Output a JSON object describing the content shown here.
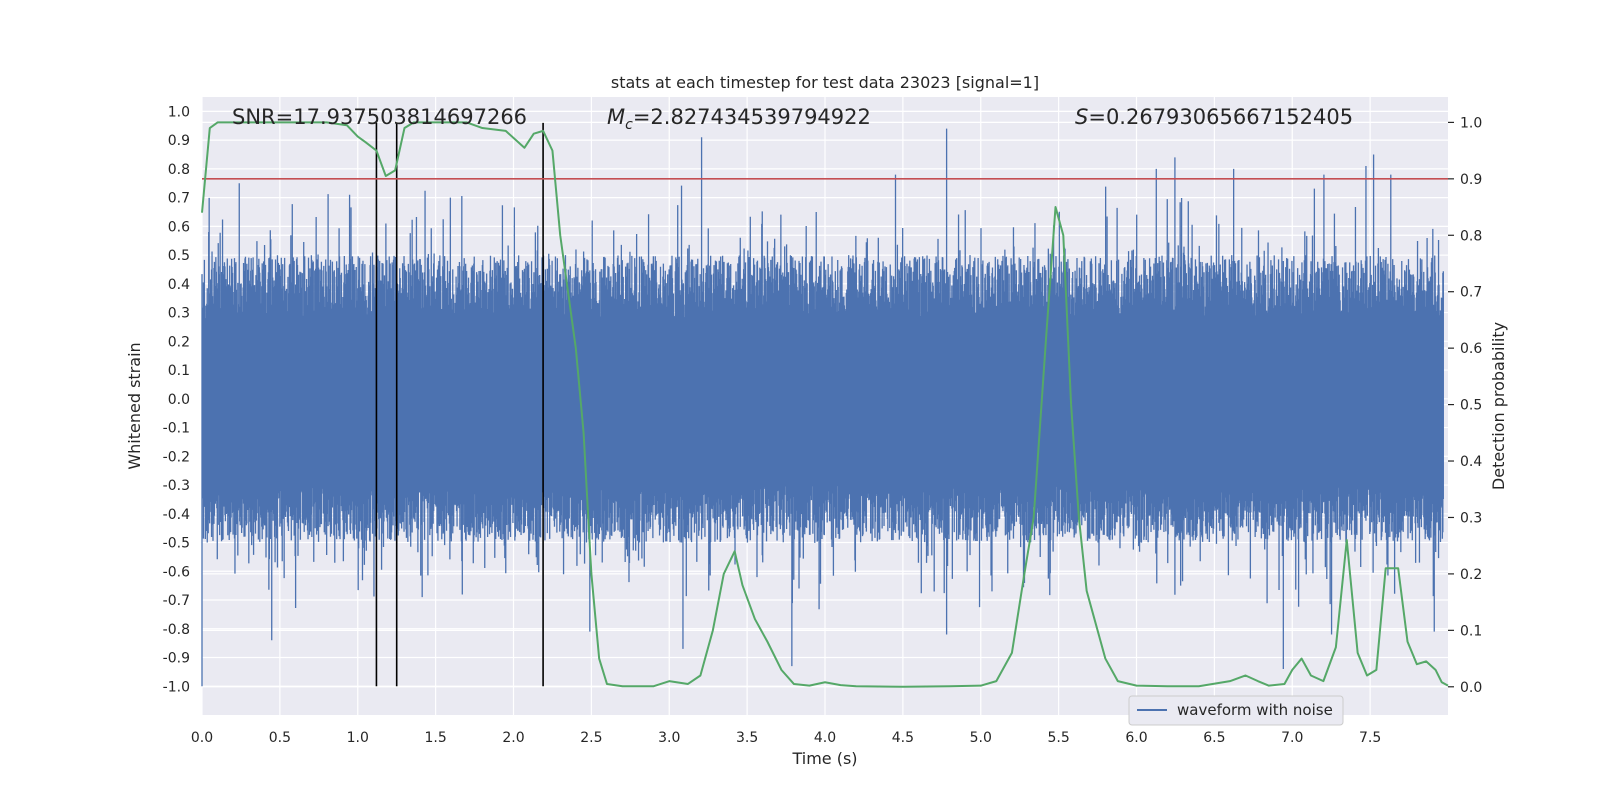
{
  "chart_data": {
    "type": "line",
    "title": "stats at each timestep for test data 23023 [signal=1]",
    "xlabel": "Time (s)",
    "ylabel_left": "Whitened strain",
    "ylabel_right": "Detection probability",
    "xlim": [
      0.0,
      8.0
    ],
    "ylim_left": [
      -1.1,
      1.05
    ],
    "ylim_right": [
      -0.05,
      1.045
    ],
    "x_ticks": [
      "0.0",
      "0.5",
      "1.0",
      "1.5",
      "2.0",
      "2.5",
      "3.0",
      "3.5",
      "4.0",
      "4.5",
      "5.0",
      "5.5",
      "6.0",
      "6.5",
      "7.0",
      "7.5"
    ],
    "y_left_ticks": [
      "1.0",
      "0.9",
      "0.8",
      "0.7",
      "0.6",
      "0.5",
      "0.4",
      "0.3",
      "0.2",
      "0.1",
      "0.0",
      "-0.1",
      "-0.2",
      "-0.3",
      "-0.4",
      "-0.5",
      "-0.6",
      "-0.7",
      "-0.8",
      "-0.9",
      "-1.0"
    ],
    "y_right_ticks": [
      "1.0",
      "0.9",
      "0.8",
      "0.7",
      "0.6",
      "0.5",
      "0.4",
      "0.3",
      "0.2",
      "0.1",
      "0.0"
    ],
    "grid": true,
    "legend": {
      "position": "lower-right",
      "entries": [
        "waveform with noise"
      ]
    },
    "annotations": {
      "snr": "SNR=17.937503814697266",
      "mc_symbol": "M",
      "mc_sub": "c",
      "mc_value": "=2.827434539794922",
      "s_symbol": "S",
      "s_value": "=0.26793065667152405"
    },
    "threshold": {
      "axis": "right",
      "value": 0.9,
      "color": "#c44e52"
    },
    "vertical_lines": [
      1.12,
      1.25,
      2.19
    ],
    "series": [
      {
        "name": "waveform with noise",
        "axis": "left",
        "color": "#4c72b0",
        "description": "noisy whitened strain, roughly -0.5..0.55 with spikes to ~0.9 and down to -1.0",
        "spikes_up": [
          [
            0.24,
            0.75
          ],
          [
            0.95,
            0.71
          ],
          [
            1.6,
            0.7
          ],
          [
            3.22,
            0.91
          ],
          [
            4.47,
            0.78
          ],
          [
            4.8,
            0.94
          ],
          [
            6.15,
            0.8
          ],
          [
            6.27,
            0.84
          ],
          [
            6.65,
            0.8
          ],
          [
            7.23,
            0.78
          ],
          [
            7.5,
            0.81
          ],
          [
            7.55,
            0.85
          ],
          [
            7.66,
            0.78
          ]
        ],
        "spikes_down": [
          [
            0.0,
            -1.0
          ],
          [
            0.45,
            -0.84
          ],
          [
            2.5,
            -0.81
          ],
          [
            3.1,
            -0.87
          ],
          [
            3.8,
            -0.93
          ],
          [
            4.8,
            -0.82
          ],
          [
            6.97,
            -0.94
          ],
          [
            7.28,
            -0.82
          ],
          [
            7.94,
            -0.81
          ]
        ]
      },
      {
        "name": "detection probability",
        "axis": "right",
        "color": "#55a868",
        "points": [
          [
            0.0,
            0.84
          ],
          [
            0.05,
            0.99
          ],
          [
            0.1,
            1.0
          ],
          [
            0.2,
            1.0
          ],
          [
            0.4,
            1.0
          ],
          [
            0.6,
            1.0
          ],
          [
            0.8,
            1.0
          ],
          [
            0.93,
            0.995
          ],
          [
            1.0,
            0.975
          ],
          [
            1.05,
            0.965
          ],
          [
            1.12,
            0.95
          ],
          [
            1.18,
            0.905
          ],
          [
            1.24,
            0.915
          ],
          [
            1.3,
            0.99
          ],
          [
            1.36,
            1.0
          ],
          [
            1.5,
            1.0
          ],
          [
            1.7,
            1.0
          ],
          [
            1.8,
            0.99
          ],
          [
            1.95,
            0.985
          ],
          [
            2.07,
            0.955
          ],
          [
            2.13,
            0.98
          ],
          [
            2.19,
            0.985
          ],
          [
            2.25,
            0.95
          ],
          [
            2.3,
            0.8
          ],
          [
            2.35,
            0.7
          ],
          [
            2.4,
            0.6
          ],
          [
            2.45,
            0.45
          ],
          [
            2.5,
            0.2
          ],
          [
            2.55,
            0.05
          ],
          [
            2.6,
            0.005
          ],
          [
            2.7,
            0.001
          ],
          [
            2.9,
            0.001
          ],
          [
            3.0,
            0.01
          ],
          [
            3.12,
            0.005
          ],
          [
            3.2,
            0.02
          ],
          [
            3.28,
            0.1
          ],
          [
            3.35,
            0.2
          ],
          [
            3.42,
            0.24
          ],
          [
            3.47,
            0.18
          ],
          [
            3.55,
            0.12
          ],
          [
            3.63,
            0.08
          ],
          [
            3.72,
            0.03
          ],
          [
            3.8,
            0.005
          ],
          [
            3.9,
            0.002
          ],
          [
            4.0,
            0.008
          ],
          [
            4.1,
            0.003
          ],
          [
            4.2,
            0.001
          ],
          [
            4.5,
            0.0
          ],
          [
            4.8,
            0.001
          ],
          [
            5.0,
            0.002
          ],
          [
            5.1,
            0.01
          ],
          [
            5.2,
            0.06
          ],
          [
            5.28,
            0.2
          ],
          [
            5.34,
            0.3
          ],
          [
            5.42,
            0.62
          ],
          [
            5.48,
            0.85
          ],
          [
            5.53,
            0.8
          ],
          [
            5.58,
            0.5
          ],
          [
            5.63,
            0.3
          ],
          [
            5.68,
            0.17
          ],
          [
            5.73,
            0.12
          ],
          [
            5.8,
            0.05
          ],
          [
            5.88,
            0.01
          ],
          [
            6.0,
            0.002
          ],
          [
            6.2,
            0.001
          ],
          [
            6.4,
            0.001
          ],
          [
            6.6,
            0.01
          ],
          [
            6.7,
            0.02
          ],
          [
            6.78,
            0.01
          ],
          [
            6.85,
            0.002
          ],
          [
            6.95,
            0.005
          ],
          [
            7.0,
            0.03
          ],
          [
            7.06,
            0.05
          ],
          [
            7.12,
            0.02
          ],
          [
            7.2,
            0.01
          ],
          [
            7.28,
            0.07
          ],
          [
            7.35,
            0.26
          ],
          [
            7.42,
            0.06
          ],
          [
            7.48,
            0.02
          ],
          [
            7.54,
            0.03
          ],
          [
            7.6,
            0.21
          ],
          [
            7.68,
            0.21
          ],
          [
            7.74,
            0.08
          ],
          [
            7.8,
            0.04
          ],
          [
            7.86,
            0.045
          ],
          [
            7.92,
            0.03
          ],
          [
            7.96,
            0.008
          ],
          [
            8.0,
            0.002
          ]
        ]
      }
    ]
  }
}
